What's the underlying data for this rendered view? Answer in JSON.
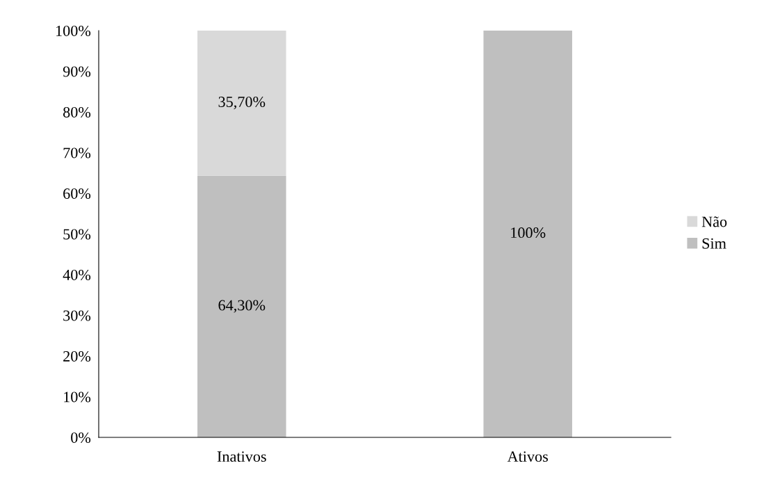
{
  "chart_data": {
    "type": "bar",
    "stacked": true,
    "categories": [
      "Inativos",
      "Ativos"
    ],
    "series": [
      {
        "name": "Sim",
        "color": "#bfbfbf",
        "values": [
          64.3,
          100
        ],
        "value_labels": [
          "64,30%",
          "100%"
        ]
      },
      {
        "name": "Não",
        "color": "#d9d9d9",
        "values": [
          35.7,
          0
        ],
        "value_labels": [
          "35,70%",
          null
        ]
      }
    ],
    "ylim": [
      0,
      100
    ],
    "yticks": [
      {
        "value": 0,
        "label": "0%"
      },
      {
        "value": 10,
        "label": "10%"
      },
      {
        "value": 20,
        "label": "20%"
      },
      {
        "value": 30,
        "label": "30%"
      },
      {
        "value": 40,
        "label": "40%"
      },
      {
        "value": 50,
        "label": "50%"
      },
      {
        "value": 60,
        "label": "60%"
      },
      {
        "value": 70,
        "label": "70%"
      },
      {
        "value": 80,
        "label": "80%"
      },
      {
        "value": 90,
        "label": "90%"
      },
      {
        "value": 100,
        "label": "100%"
      }
    ],
    "legend": "right",
    "grid": false
  }
}
